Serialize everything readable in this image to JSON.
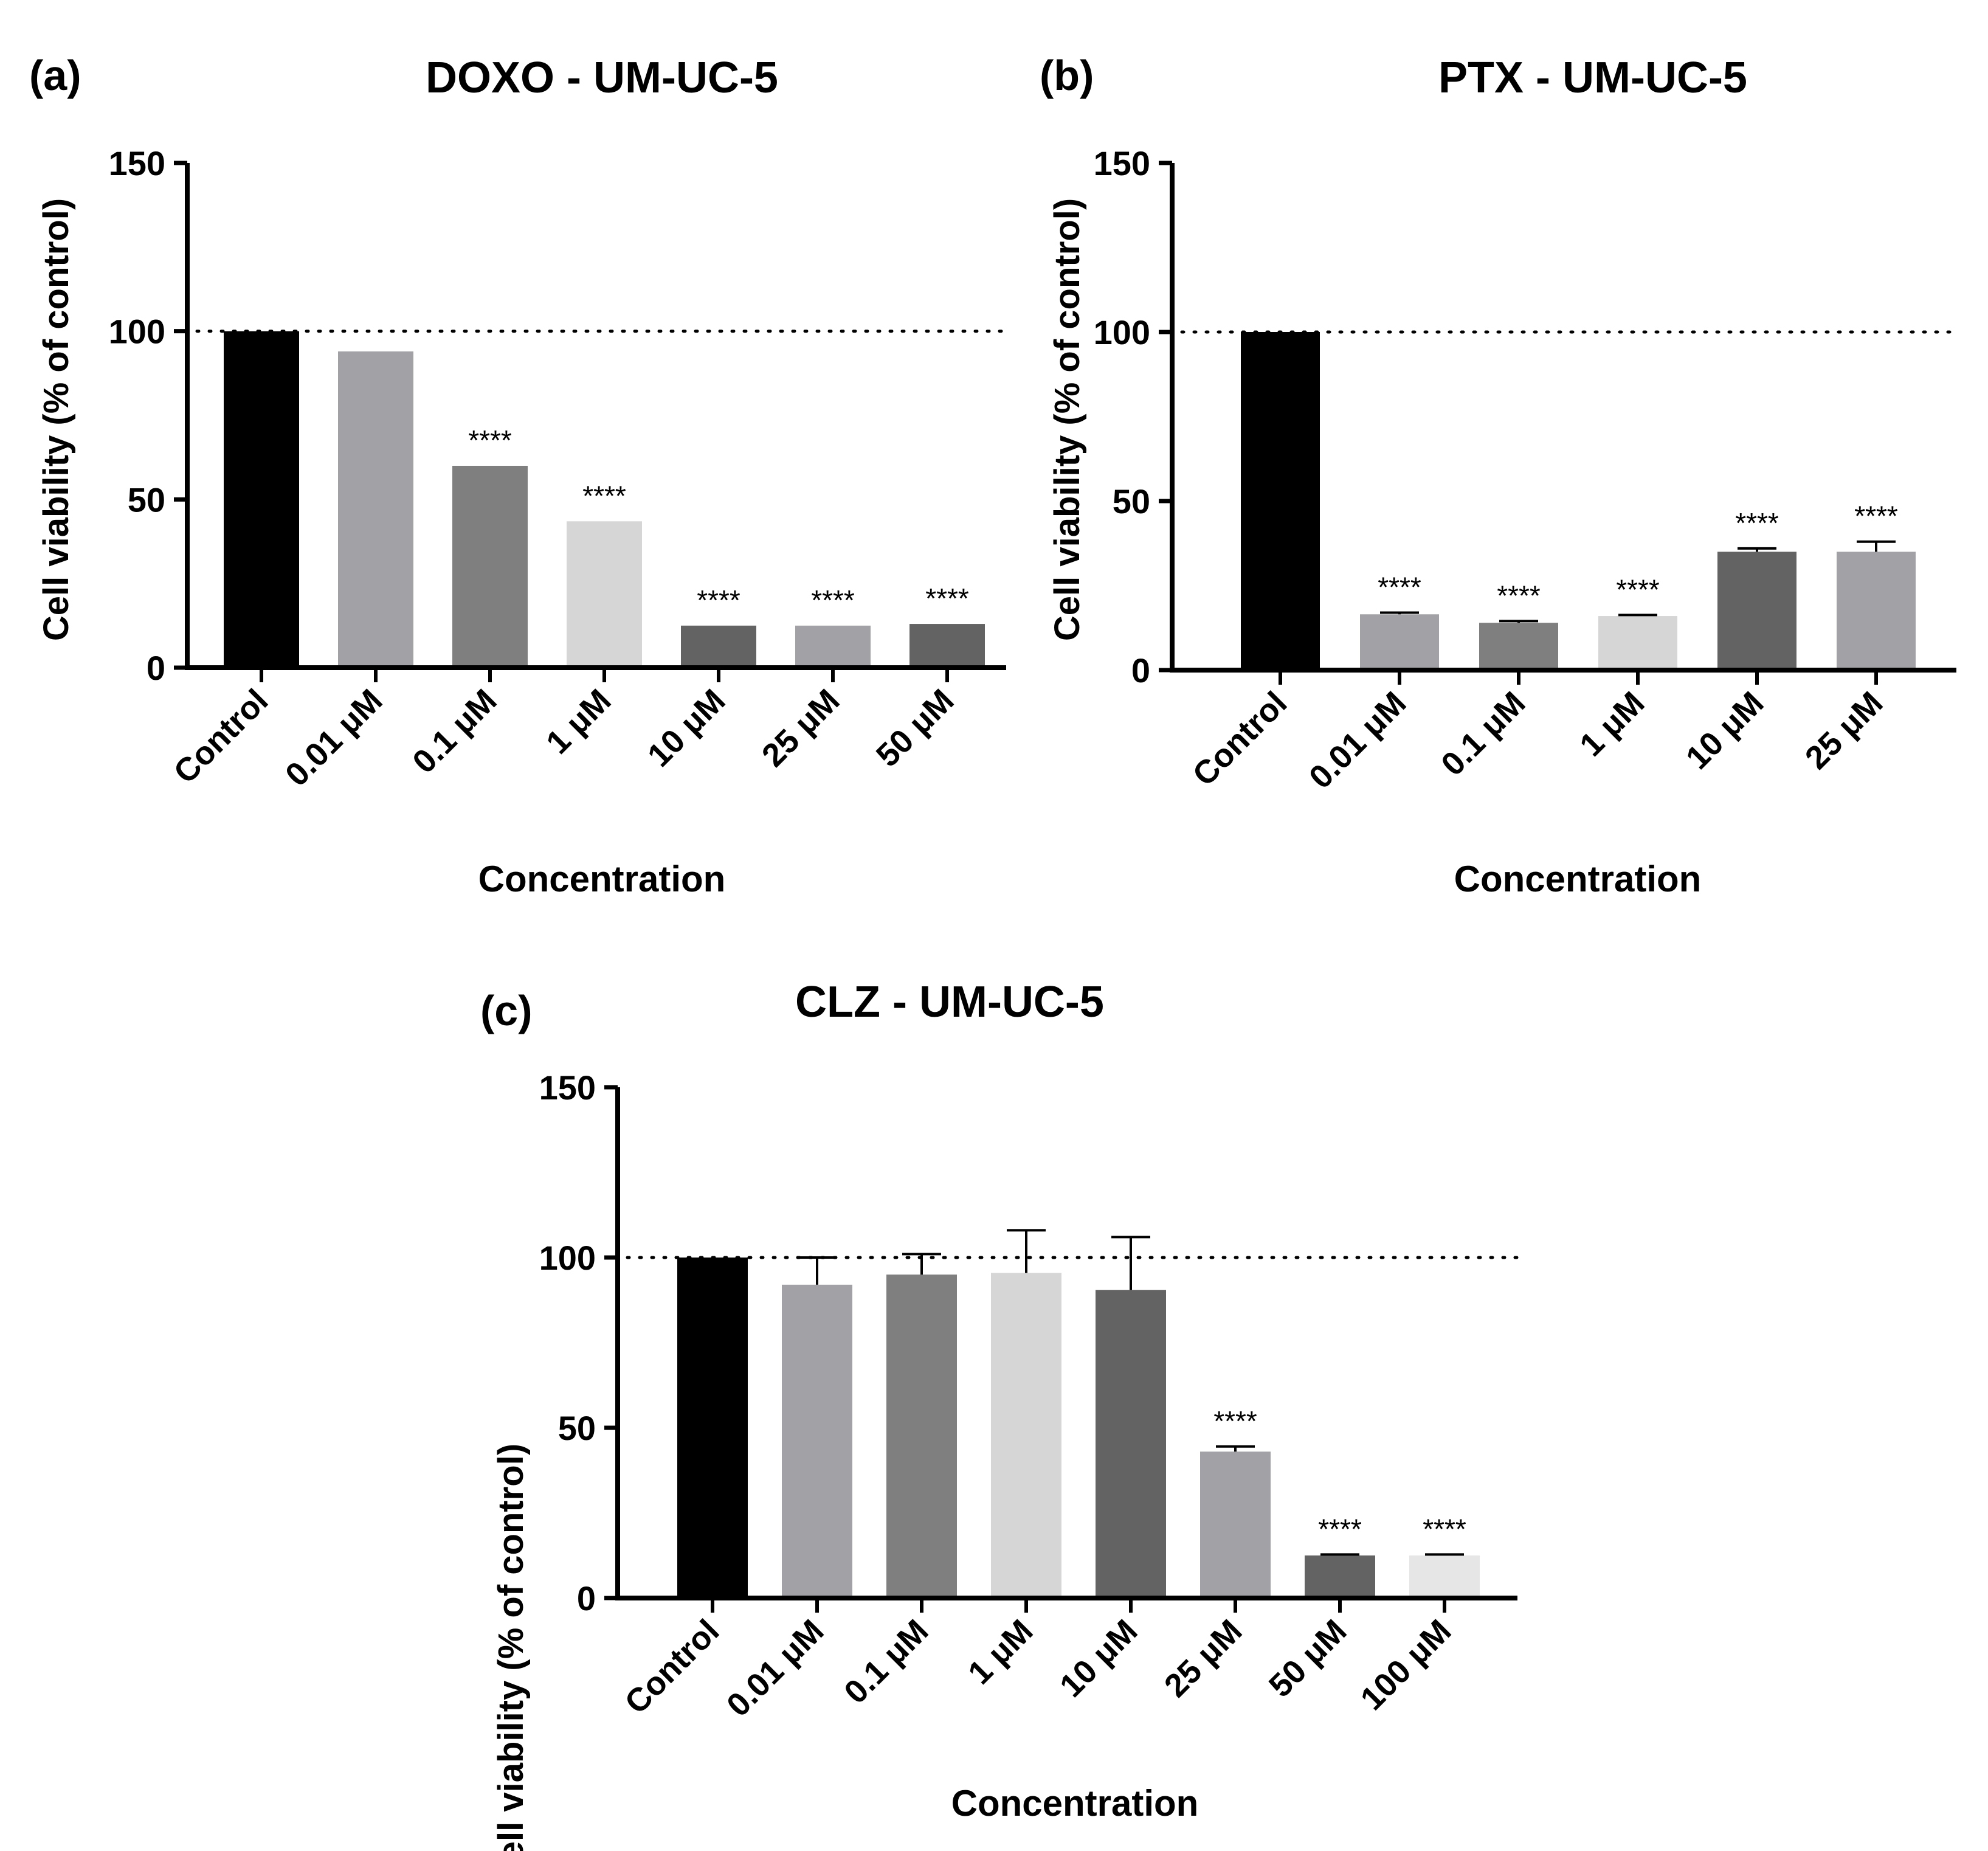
{
  "chart_data": [
    {
      "type": "bar",
      "panel_label": "(a)",
      "title": "DOXO - UM-UC-5",
      "xlabel": "Concentration",
      "ylabel": "Cell viability (% of control)",
      "ylim": [
        0,
        150
      ],
      "yticks": [
        "0",
        "50",
        "100",
        "150"
      ],
      "reference_line": 100,
      "categories": [
        "Control",
        "0.01 μM",
        "0.1 μM",
        "1 μM",
        "10 μM",
        "25 μM",
        "50 μM"
      ],
      "values": [
        100,
        94,
        60,
        43.5,
        12.5,
        12.5,
        13
      ],
      "errors": [
        0,
        0,
        0,
        0,
        0,
        0,
        0
      ],
      "colors": [
        "#000000",
        "#a2a2a6",
        "#7f7f7f",
        "#d6d6d6",
        "#636363",
        "#a2a2a6",
        "#636363"
      ],
      "significance": [
        "",
        "",
        "****",
        "****",
        "****",
        "****",
        "****"
      ]
    },
    {
      "type": "bar",
      "panel_label": "(b)",
      "title": "PTX - UM-UC-5",
      "xlabel": "Concentration",
      "ylabel": "Cell viability (% of control)",
      "ylim": [
        0,
        150
      ],
      "yticks": [
        "0",
        "50",
        "100",
        "150"
      ],
      "reference_line": 100,
      "categories": [
        "Control",
        "0.01 μM",
        "0.1 μM",
        "1 μM",
        "10 μM",
        "25 μM"
      ],
      "values": [
        100,
        16.5,
        14,
        16,
        35,
        35
      ],
      "errors": [
        0,
        0.5,
        0.5,
        0.3,
        1,
        3
      ],
      "colors": [
        "#000000",
        "#a2a2a6",
        "#7f7f7f",
        "#d6d6d6",
        "#636363",
        "#a2a2a6"
      ],
      "significance": [
        "",
        "****",
        "****",
        "****",
        "****",
        "****"
      ]
    },
    {
      "type": "bar",
      "panel_label": "(c)",
      "title": "CLZ - UM-UC-5",
      "xlabel": "Concentration",
      "ylabel": "Cell viability (% of control)",
      "ylim": [
        0,
        150
      ],
      "yticks": [
        "0",
        "50",
        "100",
        "150"
      ],
      "reference_line": 100,
      "categories": [
        "Control",
        "0.01 μM",
        "0.1 μM",
        "1 μM",
        "10 μM",
        "25 μM",
        "50 μM",
        "100 μM"
      ],
      "values": [
        100,
        92,
        95,
        95.5,
        90.5,
        43,
        12.5,
        12.5
      ],
      "errors": [
        0,
        8,
        6,
        12.5,
        15.5,
        1.5,
        0.3,
        0.3
      ],
      "colors": [
        "#000000",
        "#a2a2a6",
        "#7f7f7f",
        "#d6d6d6",
        "#636363",
        "#a2a2a6",
        "#636363",
        "#e6e6e6"
      ],
      "significance": [
        "",
        "",
        "",
        "",
        "",
        "****",
        "****",
        "****"
      ]
    }
  ]
}
